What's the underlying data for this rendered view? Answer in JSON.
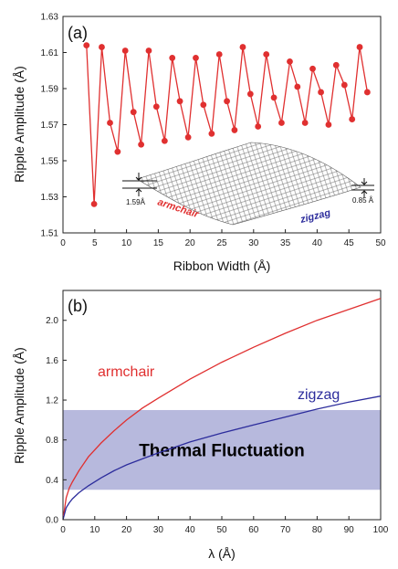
{
  "chart_data": [
    {
      "panel_label": "(a)",
      "type": "line",
      "xlabel": "Ribbon Width (Å)",
      "ylabel": "Ripple Amplitude (Å)",
      "xlim": [
        0,
        50
      ],
      "ylim": [
        1.51,
        1.63
      ],
      "xticks": [
        "0",
        "5",
        "10",
        "15",
        "20",
        "25",
        "30",
        "35",
        "40",
        "45",
        "50"
      ],
      "yticks": [
        "1.51",
        "1.53",
        "1.55",
        "1.57",
        "1.59",
        "1.61",
        "1.63"
      ],
      "grid": false,
      "series": [
        {
          "color": "#e03030",
          "marker": "circle",
          "x": [
            3.7,
            4.9,
            6.1,
            7.4,
            8.6,
            9.8,
            11.1,
            12.3,
            13.5,
            14.7,
            16.0,
            17.2,
            18.4,
            19.7,
            20.9,
            22.1,
            23.4,
            24.6,
            25.8,
            27.0,
            28.3,
            29.5,
            30.7,
            32.0,
            33.2,
            34.4,
            35.7,
            36.9,
            38.1,
            39.3,
            40.6,
            41.8,
            43.0,
            44.3,
            45.5,
            46.7,
            47.9
          ],
          "y": [
            1.614,
            1.526,
            1.613,
            1.571,
            1.555,
            1.611,
            1.577,
            1.559,
            1.611,
            1.58,
            1.561,
            1.607,
            1.583,
            1.563,
            1.607,
            1.581,
            1.565,
            1.609,
            1.583,
            1.567,
            1.613,
            1.587,
            1.569,
            1.609,
            1.585,
            1.571,
            1.605,
            1.591,
            1.571,
            1.601,
            1.588,
            1.57,
            1.603,
            1.592,
            1.573,
            1.613,
            1.588
          ]
        }
      ],
      "inset": {
        "left_label": "1.59Å",
        "right_label": "0.85 Å",
        "armchair_label": "armchair",
        "zigzag_label": "zigzag"
      }
    },
    {
      "panel_label": "(b)",
      "type": "line",
      "xlabel": "λ (Å)",
      "ylabel": "Ripple Amplitude (Å)",
      "xlim": [
        0,
        100
      ],
      "ylim": [
        0.0,
        2.3
      ],
      "xticks": [
        "0",
        "10",
        "20",
        "30",
        "40",
        "50",
        "60",
        "70",
        "80",
        "90",
        "100"
      ],
      "yticks": [
        "0.0",
        "0.4",
        "0.8",
        "1.2",
        "1.6",
        "2.0"
      ],
      "grid": false,
      "series": [
        {
          "name": "armchair",
          "color": "#e03030",
          "x": [
            0,
            1,
            2,
            3,
            5,
            8,
            12,
            16,
            20,
            25,
            30,
            40,
            50,
            60,
            70,
            80,
            90,
            100
          ],
          "y": [
            0.0,
            0.22,
            0.32,
            0.38,
            0.49,
            0.63,
            0.77,
            0.89,
            1.0,
            1.12,
            1.22,
            1.41,
            1.58,
            1.73,
            1.87,
            2.0,
            2.11,
            2.22
          ]
        },
        {
          "name": "zigzag",
          "color": "#2c2c9c",
          "x": [
            0,
            1,
            2,
            3,
            5,
            8,
            12,
            16,
            20,
            25,
            30,
            40,
            50,
            60,
            70,
            80,
            90,
            100
          ],
          "y": [
            0.0,
            0.12,
            0.17,
            0.21,
            0.27,
            0.34,
            0.42,
            0.49,
            0.55,
            0.61,
            0.67,
            0.78,
            0.87,
            0.95,
            1.03,
            1.11,
            1.18,
            1.24
          ]
        }
      ],
      "band": {
        "label": "Thermal Fluctuation",
        "y_range": [
          0.3,
          1.1
        ],
        "color": "#b7b9dd"
      }
    }
  ]
}
